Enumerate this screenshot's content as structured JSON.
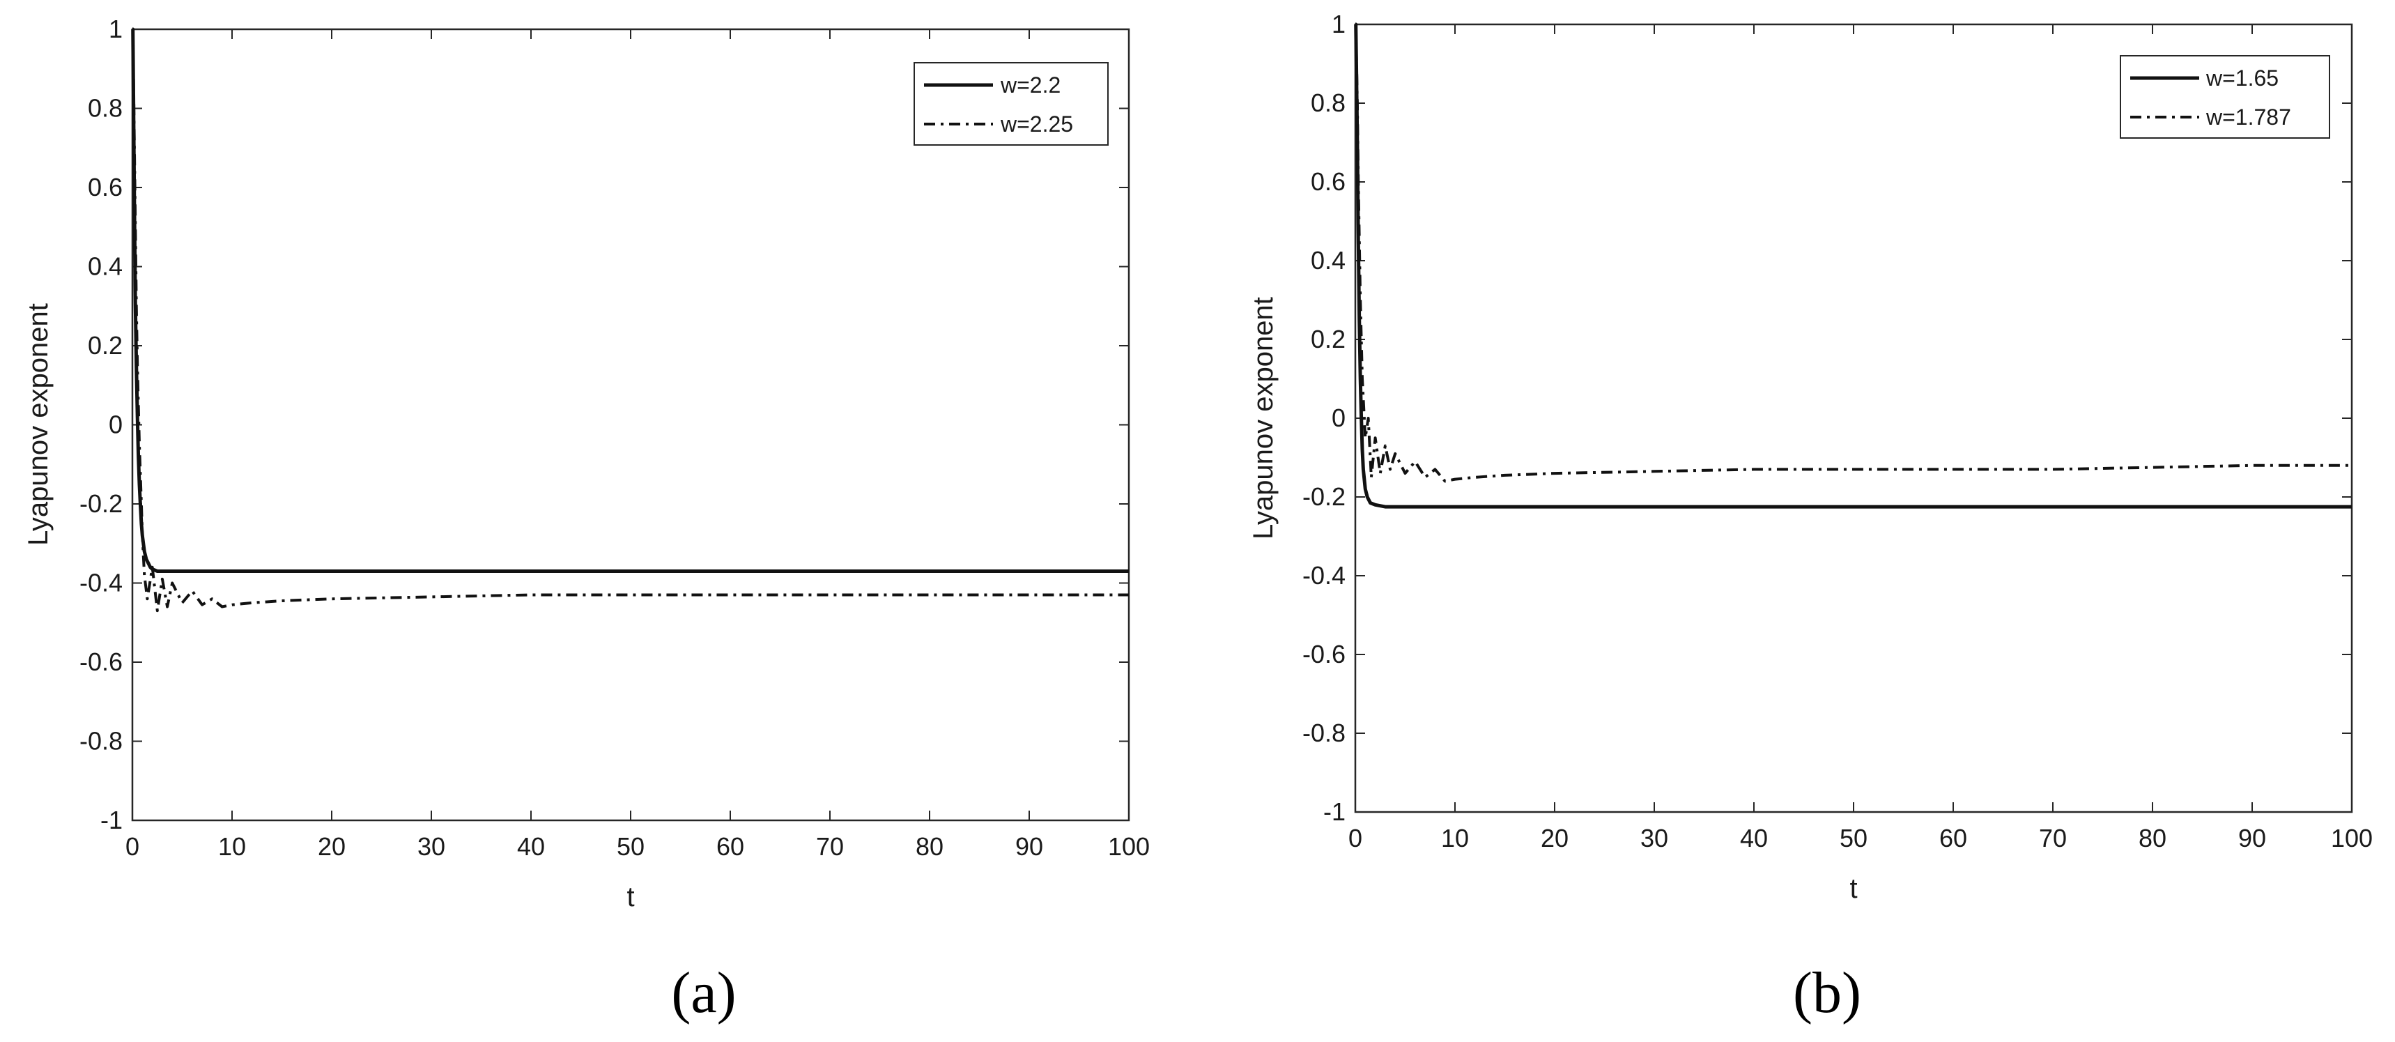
{
  "chart_data": [
    {
      "type": "line",
      "caption": "(a)",
      "xlabel": "t",
      "ylabel": "Lyapunov exponent",
      "xlim": [
        0,
        100
      ],
      "ylim": [
        -1,
        1
      ],
      "xticks": [
        0,
        10,
        20,
        30,
        40,
        50,
        60,
        70,
        80,
        90,
        100
      ],
      "yticks": [
        -1,
        -0.8,
        -0.6,
        -0.4,
        -0.2,
        0,
        0.2,
        0.4,
        0.6,
        0.8,
        1
      ],
      "xtick_labels": [
        "0",
        "10",
        "20",
        "30",
        "40",
        "50",
        "60",
        "70",
        "80",
        "90",
        "100"
      ],
      "ytick_labels": [
        "-1",
        "-0.8",
        "-0.6",
        "-0.4",
        "-0.2",
        "0",
        "0.2",
        "0.4",
        "0.6",
        "0.8",
        "1"
      ],
      "grid": false,
      "legend_position": "top-right",
      "series": [
        {
          "name": "w=2.2",
          "style": "solid",
          "x": [
            0,
            0.05,
            0.2,
            0.3,
            0.4,
            0.5,
            0.6,
            0.7,
            0.8,
            0.9,
            1.0,
            1.2,
            1.4,
            1.6,
            1.8,
            2.0,
            2.5,
            3,
            4,
            5,
            7,
            10,
            20,
            40,
            60,
            80,
            100
          ],
          "y": [
            1,
            1,
            0.55,
            0.3,
            0.15,
            0.02,
            -0.08,
            -0.15,
            -0.2,
            -0.25,
            -0.28,
            -0.32,
            -0.34,
            -0.35,
            -0.36,
            -0.365,
            -0.37,
            -0.37,
            -0.37,
            -0.37,
            -0.37,
            -0.37,
            -0.37,
            -0.37,
            -0.37,
            -0.37,
            -0.37
          ]
        },
        {
          "name": "w=2.25",
          "style": "dash-dot",
          "x": [
            0,
            0.05,
            0.2,
            0.3,
            0.4,
            0.5,
            0.7,
            0.9,
            1.0,
            1.2,
            1.5,
            2.0,
            2.5,
            3,
            3.5,
            4,
            5,
            6,
            7,
            8,
            9,
            10,
            12,
            15,
            20,
            30,
            40,
            50,
            60,
            70,
            80,
            90,
            100
          ],
          "y": [
            1,
            1,
            0.7,
            0.5,
            0.3,
            0.15,
            -0.05,
            -0.2,
            -0.28,
            -0.38,
            -0.44,
            -0.36,
            -0.47,
            -0.39,
            -0.46,
            -0.4,
            -0.45,
            -0.42,
            -0.455,
            -0.44,
            -0.46,
            -0.455,
            -0.45,
            -0.445,
            -0.44,
            -0.435,
            -0.43,
            -0.43,
            -0.43,
            -0.43,
            -0.43,
            -0.43,
            -0.43
          ]
        }
      ]
    },
    {
      "type": "line",
      "caption": "(b)",
      "xlabel": "t",
      "ylabel": "Lyapunov exponent",
      "xlim": [
        0,
        100
      ],
      "ylim": [
        -1,
        1
      ],
      "xticks": [
        0,
        10,
        20,
        30,
        40,
        50,
        60,
        70,
        80,
        90,
        100
      ],
      "yticks": [
        -1,
        -0.8,
        -0.6,
        -0.4,
        -0.2,
        0,
        0.2,
        0.4,
        0.6,
        0.8,
        1
      ],
      "xtick_labels": [
        "0",
        "10",
        "20",
        "30",
        "40",
        "50",
        "60",
        "70",
        "80",
        "90",
        "100"
      ],
      "ytick_labels": [
        "-1",
        "-0.8",
        "-0.6",
        "-0.4",
        "-0.2",
        "0",
        "0.2",
        "0.4",
        "0.6",
        "0.8",
        "1"
      ],
      "grid": false,
      "legend_position": "top-right",
      "series": [
        {
          "name": "w=1.65",
          "style": "solid",
          "x": [
            0,
            0.05,
            0.2,
            0.3,
            0.4,
            0.5,
            0.6,
            0.7,
            0.8,
            1.0,
            1.2,
            1.5,
            2,
            3,
            5,
            10,
            20,
            40,
            60,
            80,
            100
          ],
          "y": [
            1,
            1,
            0.7,
            0.45,
            0.25,
            0.1,
            0.0,
            -0.08,
            -0.13,
            -0.18,
            -0.2,
            -0.215,
            -0.22,
            -0.225,
            -0.225,
            -0.225,
            -0.225,
            -0.225,
            -0.225,
            -0.225,
            -0.225
          ]
        },
        {
          "name": "w=1.787",
          "style": "dash-dot",
          "x": [
            0,
            0.05,
            0.2,
            0.3,
            0.5,
            0.7,
            1.0,
            1.3,
            1.6,
            2.0,
            2.5,
            3,
            3.5,
            4,
            5,
            6,
            7,
            8,
            9,
            10,
            12,
            15,
            20,
            30,
            40,
            50,
            60,
            70,
            80,
            90,
            100
          ],
          "y": [
            1,
            1,
            0.8,
            0.6,
            0.3,
            0.1,
            -0.05,
            0.0,
            -0.15,
            -0.05,
            -0.14,
            -0.07,
            -0.13,
            -0.09,
            -0.14,
            -0.11,
            -0.15,
            -0.13,
            -0.16,
            -0.155,
            -0.15,
            -0.145,
            -0.14,
            -0.135,
            -0.13,
            -0.13,
            -0.13,
            -0.13,
            -0.125,
            -0.12,
            -0.12
          ]
        }
      ]
    }
  ]
}
